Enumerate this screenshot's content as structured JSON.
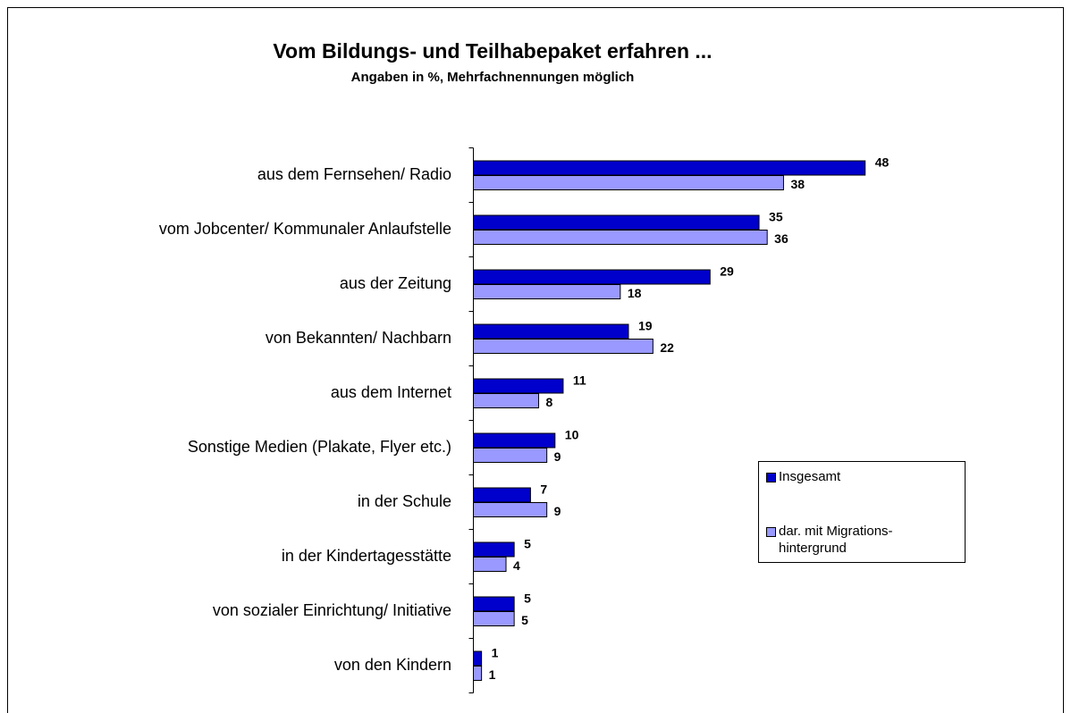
{
  "chart_data": {
    "type": "hbar",
    "title": "Vom Bildungs- und Teilhabepaket erfahren ...",
    "subtitle": "Angaben in %, Mehrfachnennungen möglich",
    "categories": [
      "aus dem Fernsehen/ Radio",
      "vom Jobcenter/ Kommunaler Anlaufstelle",
      "aus der Zeitung",
      "von Bekannten/ Nachbarn",
      "aus dem Internet",
      "Sonstige Medien (Plakate, Flyer etc.)",
      "in der Schule",
      "in der Kindertagesstätte",
      "von sozialer Einrichtung/ Initiative",
      "von den Kindern"
    ],
    "series": [
      {
        "name": "Insgesamt",
        "color": "#0000cc",
        "values": [
          48,
          35,
          29,
          19,
          11,
          10,
          7,
          5,
          5,
          1
        ]
      },
      {
        "name": "dar. mit Migrations- hintergrund",
        "color": "#9999ff",
        "values": [
          38,
          36,
          18,
          22,
          8,
          9,
          9,
          4,
          5,
          1
        ]
      }
    ],
    "xlim": [
      0,
      50
    ],
    "legend": "right"
  }
}
